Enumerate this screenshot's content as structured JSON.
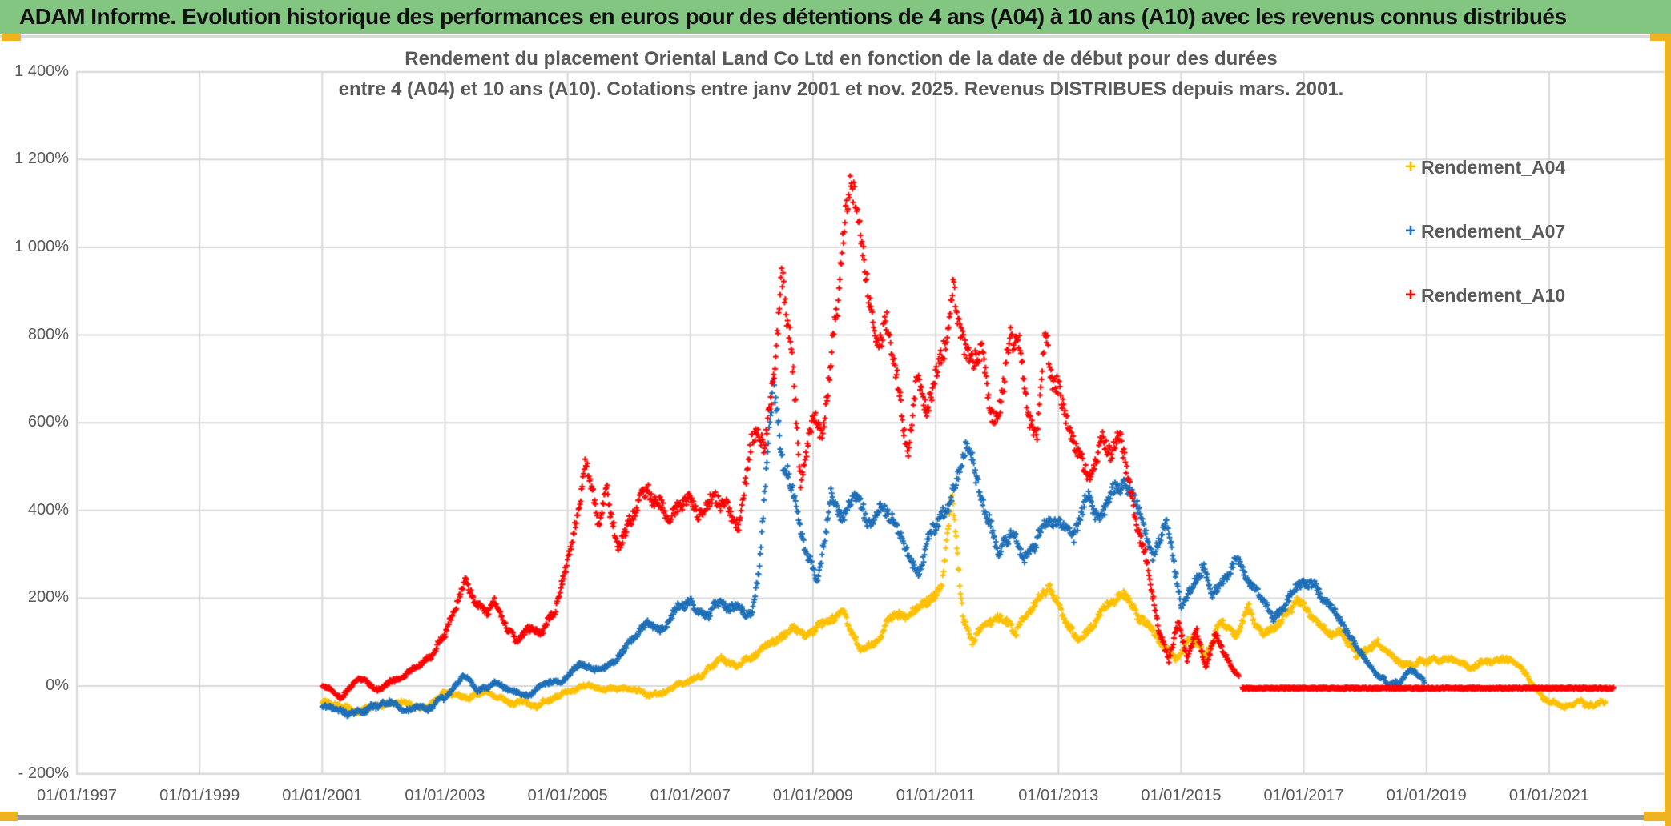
{
  "header": {
    "title": "ADAM Informe. Evolution historique des performances en euros pour des détentions de 4 ans (A04) à 10 ans (A10) avec les revenus connus distribués",
    "bg_color": "#82C682"
  },
  "decorations": {
    "selection_accent_color": "#EFB321",
    "grid_color": "#D9D9D9",
    "text_color": "#595959"
  },
  "chart_data": {
    "type": "scatter",
    "title_lines": [
      "Rendement du placement Oriental Land Co Ltd en fonction de la date de début pour des durées",
      "entre 4 (A04) et 10 ans (A10). Cotations entre janv 2001 et nov. 2025. Revenus DISTRIBUES depuis mars. 2001."
    ],
    "x_axis": {
      "labels": [
        "01/01/1997",
        "01/01/1999",
        "01/01/2001",
        "01/01/2003",
        "01/01/2005",
        "01/01/2007",
        "01/01/2009",
        "01/01/2011",
        "01/01/2013",
        "01/01/2015",
        "01/01/2017",
        "01/01/2019",
        "01/01/2021"
      ],
      "start_year": 1997,
      "end_year": 2021,
      "step_years": 2,
      "grid": true
    },
    "y_axis": {
      "labels": [
        "1 400%",
        "1 200%",
        "1 000%",
        "800%",
        "600%",
        "400%",
        "200%",
        "0%",
        "- 200%"
      ],
      "max": 1400,
      "min": -200,
      "step": 200,
      "unit": "%",
      "grid": true
    },
    "legend": {
      "position": "right",
      "items": [
        {
          "name": "Rendement_A04",
          "color": "#FFC000"
        },
        {
          "name": "Rendement_A07",
          "color": "#1F70B8"
        },
        {
          "name": "Rendement_A10",
          "color": "#FF0000"
        }
      ]
    },
    "series": [
      {
        "name": "Rendement_A04",
        "color": "#FFC000",
        "marker": "plus",
        "anchors": [
          [
            2001.0,
            -35
          ],
          [
            2001.5,
            -57
          ],
          [
            2001.9,
            -45
          ],
          [
            2002.3,
            -38
          ],
          [
            2002.7,
            -48
          ],
          [
            2003.0,
            -12
          ],
          [
            2003.35,
            -28
          ],
          [
            2003.7,
            -15
          ],
          [
            2004.05,
            -35
          ],
          [
            2004.5,
            -44
          ],
          [
            2004.8,
            -25
          ],
          [
            2005.1,
            -8
          ],
          [
            2005.4,
            2
          ],
          [
            2005.7,
            -8
          ],
          [
            2006.0,
            -4
          ],
          [
            2006.35,
            -20
          ],
          [
            2006.6,
            -12
          ],
          [
            2006.9,
            6
          ],
          [
            2007.2,
            28
          ],
          [
            2007.5,
            62
          ],
          [
            2007.75,
            46
          ],
          [
            2008.1,
            78
          ],
          [
            2008.4,
            108
          ],
          [
            2008.65,
            128
          ],
          [
            2008.85,
            112
          ],
          [
            2009.2,
            142
          ],
          [
            2009.5,
            172
          ],
          [
            2009.75,
            82
          ],
          [
            2010.0,
            100
          ],
          [
            2010.3,
            160
          ],
          [
            2010.6,
            168
          ],
          [
            2010.9,
            185
          ],
          [
            2011.1,
            225
          ],
          [
            2011.27,
            440
          ],
          [
            2011.45,
            155
          ],
          [
            2011.6,
            95
          ],
          [
            2011.8,
            140
          ],
          [
            2012.0,
            162
          ],
          [
            2012.3,
            122
          ],
          [
            2012.6,
            180
          ],
          [
            2012.85,
            235
          ],
          [
            2013.1,
            148
          ],
          [
            2013.35,
            102
          ],
          [
            2013.6,
            152
          ],
          [
            2013.85,
            196
          ],
          [
            2014.08,
            200
          ],
          [
            2014.4,
            148
          ],
          [
            2014.7,
            90
          ],
          [
            2014.95,
            64
          ],
          [
            2015.15,
            116
          ],
          [
            2015.4,
            70
          ],
          [
            2015.65,
            146
          ],
          [
            2015.9,
            108
          ],
          [
            2016.1,
            172
          ],
          [
            2016.35,
            120
          ],
          [
            2016.6,
            142
          ],
          [
            2016.9,
            205
          ],
          [
            2017.15,
            158
          ],
          [
            2017.4,
            118
          ],
          [
            2017.6,
            126
          ],
          [
            2017.85,
            68
          ],
          [
            2018.2,
            100
          ],
          [
            2018.5,
            58
          ],
          [
            2018.8,
            52
          ],
          [
            2019.1,
            60
          ],
          [
            2019.4,
            58
          ],
          [
            2019.7,
            45
          ],
          [
            2020.0,
            58
          ],
          [
            2020.3,
            66
          ],
          [
            2020.55,
            38
          ],
          [
            2020.9,
            -30
          ],
          [
            2021.2,
            -46
          ],
          [
            2021.5,
            -34
          ],
          [
            2021.75,
            -45
          ],
          [
            2021.92,
            -40
          ]
        ]
      },
      {
        "name": "Rendement_A07",
        "color": "#1F70B8",
        "marker": "plus",
        "anchors": [
          [
            2001.0,
            -45
          ],
          [
            2001.4,
            -62
          ],
          [
            2001.8,
            -50
          ],
          [
            2002.1,
            -40
          ],
          [
            2002.45,
            -56
          ],
          [
            2002.8,
            -45
          ],
          [
            2003.05,
            -18
          ],
          [
            2003.3,
            26
          ],
          [
            2003.55,
            -12
          ],
          [
            2003.8,
            6
          ],
          [
            2004.05,
            -6
          ],
          [
            2004.3,
            -24
          ],
          [
            2004.6,
            0
          ],
          [
            2004.9,
            12
          ],
          [
            2005.2,
            48
          ],
          [
            2005.45,
            36
          ],
          [
            2005.7,
            50
          ],
          [
            2006.0,
            98
          ],
          [
            2006.3,
            146
          ],
          [
            2006.5,
            118
          ],
          [
            2006.75,
            172
          ],
          [
            2007.0,
            188
          ],
          [
            2007.25,
            160
          ],
          [
            2007.5,
            192
          ],
          [
            2007.75,
            176
          ],
          [
            2008.0,
            162
          ],
          [
            2008.12,
            250
          ],
          [
            2008.25,
            520
          ],
          [
            2008.35,
            665
          ],
          [
            2008.5,
            528
          ],
          [
            2008.7,
            428
          ],
          [
            2008.85,
            328
          ],
          [
            2009.05,
            232
          ],
          [
            2009.3,
            432
          ],
          [
            2009.5,
            390
          ],
          [
            2009.7,
            428
          ],
          [
            2009.9,
            370
          ],
          [
            2010.1,
            398
          ],
          [
            2010.35,
            360
          ],
          [
            2010.55,
            298
          ],
          [
            2010.72,
            262
          ],
          [
            2010.9,
            340
          ],
          [
            2011.1,
            388
          ],
          [
            2011.3,
            440
          ],
          [
            2011.5,
            550
          ],
          [
            2011.65,
            468
          ],
          [
            2011.85,
            385
          ],
          [
            2012.05,
            305
          ],
          [
            2012.25,
            348
          ],
          [
            2012.45,
            295
          ],
          [
            2012.65,
            330
          ],
          [
            2012.85,
            388
          ],
          [
            2013.05,
            375
          ],
          [
            2013.25,
            330
          ],
          [
            2013.45,
            428
          ],
          [
            2013.7,
            392
          ],
          [
            2013.9,
            440
          ],
          [
            2014.08,
            478
          ],
          [
            2014.35,
            375
          ],
          [
            2014.55,
            295
          ],
          [
            2014.75,
            385
          ],
          [
            2015.0,
            175
          ],
          [
            2015.2,
            235
          ],
          [
            2015.35,
            272
          ],
          [
            2015.5,
            198
          ],
          [
            2015.7,
            235
          ],
          [
            2015.9,
            288
          ],
          [
            2016.1,
            248
          ],
          [
            2016.3,
            200
          ],
          [
            2016.5,
            158
          ],
          [
            2016.7,
            188
          ],
          [
            2016.9,
            230
          ],
          [
            2017.15,
            242
          ],
          [
            2017.35,
            192
          ],
          [
            2017.55,
            158
          ],
          [
            2017.75,
            118
          ],
          [
            2017.95,
            72
          ],
          [
            2018.15,
            32
          ],
          [
            2018.35,
            8
          ],
          [
            2018.55,
            4
          ],
          [
            2018.72,
            40
          ],
          [
            2018.88,
            28
          ],
          [
            2018.97,
            12
          ]
        ]
      },
      {
        "name": "Rendement_A10",
        "color": "#FF0000",
        "marker": "plus",
        "anchors": [
          [
            2001.0,
            4
          ],
          [
            2001.3,
            -28
          ],
          [
            2001.6,
            22
          ],
          [
            2001.9,
            -12
          ],
          [
            2002.2,
            15
          ],
          [
            2002.5,
            38
          ],
          [
            2002.75,
            62
          ],
          [
            2003.0,
            118
          ],
          [
            2003.2,
            182
          ],
          [
            2003.35,
            242
          ],
          [
            2003.5,
            186
          ],
          [
            2003.65,
            168
          ],
          [
            2003.82,
            196
          ],
          [
            2004.0,
            140
          ],
          [
            2004.15,
            98
          ],
          [
            2004.35,
            142
          ],
          [
            2004.55,
            124
          ],
          [
            2004.78,
            162
          ],
          [
            2004.95,
            250
          ],
          [
            2005.15,
            395
          ],
          [
            2005.3,
            515
          ],
          [
            2005.5,
            362
          ],
          [
            2005.65,
            448
          ],
          [
            2005.82,
            305
          ],
          [
            2006.0,
            388
          ],
          [
            2006.2,
            428
          ],
          [
            2006.45,
            440
          ],
          [
            2006.65,
            378
          ],
          [
            2006.9,
            432
          ],
          [
            2007.15,
            398
          ],
          [
            2007.4,
            430
          ],
          [
            2007.6,
            400
          ],
          [
            2007.8,
            362
          ],
          [
            2008.0,
            556
          ],
          [
            2008.1,
            590
          ],
          [
            2008.2,
            545
          ],
          [
            2008.35,
            700
          ],
          [
            2008.48,
            915
          ],
          [
            2008.65,
            775
          ],
          [
            2008.8,
            472
          ],
          [
            2009.0,
            600
          ],
          [
            2009.15,
            560
          ],
          [
            2009.35,
            825
          ],
          [
            2009.5,
            1005
          ],
          [
            2009.6,
            1148
          ],
          [
            2009.75,
            1058
          ],
          [
            2009.9,
            905
          ],
          [
            2010.05,
            782
          ],
          [
            2010.2,
            845
          ],
          [
            2010.4,
            655
          ],
          [
            2010.55,
            528
          ],
          [
            2010.7,
            702
          ],
          [
            2010.85,
            648
          ],
          [
            2011.0,
            718
          ],
          [
            2011.15,
            780
          ],
          [
            2011.28,
            920
          ],
          [
            2011.45,
            805
          ],
          [
            2011.6,
            740
          ],
          [
            2011.75,
            765
          ],
          [
            2011.9,
            602
          ],
          [
            2012.05,
            648
          ],
          [
            2012.2,
            775
          ],
          [
            2012.35,
            805
          ],
          [
            2012.5,
            628
          ],
          [
            2012.65,
            545
          ],
          [
            2012.78,
            792
          ],
          [
            2012.9,
            700
          ],
          [
            2013.1,
            625
          ],
          [
            2013.3,
            545
          ],
          [
            2013.5,
            482
          ],
          [
            2013.7,
            558
          ],
          [
            2013.85,
            528
          ],
          [
            2014.0,
            570
          ],
          [
            2014.2,
            420
          ],
          [
            2014.45,
            288
          ],
          [
            2014.65,
            120
          ],
          [
            2014.8,
            62
          ],
          [
            2014.95,
            148
          ],
          [
            2015.1,
            55
          ],
          [
            2015.25,
            126
          ],
          [
            2015.4,
            42
          ],
          [
            2015.55,
            118
          ],
          [
            2015.7,
            76
          ],
          [
            2015.85,
            35
          ],
          [
            2015.95,
            15
          ]
        ],
        "flat_segment": {
          "from": 2016.0,
          "to": 2022.05,
          "value": -5
        }
      }
    ]
  }
}
